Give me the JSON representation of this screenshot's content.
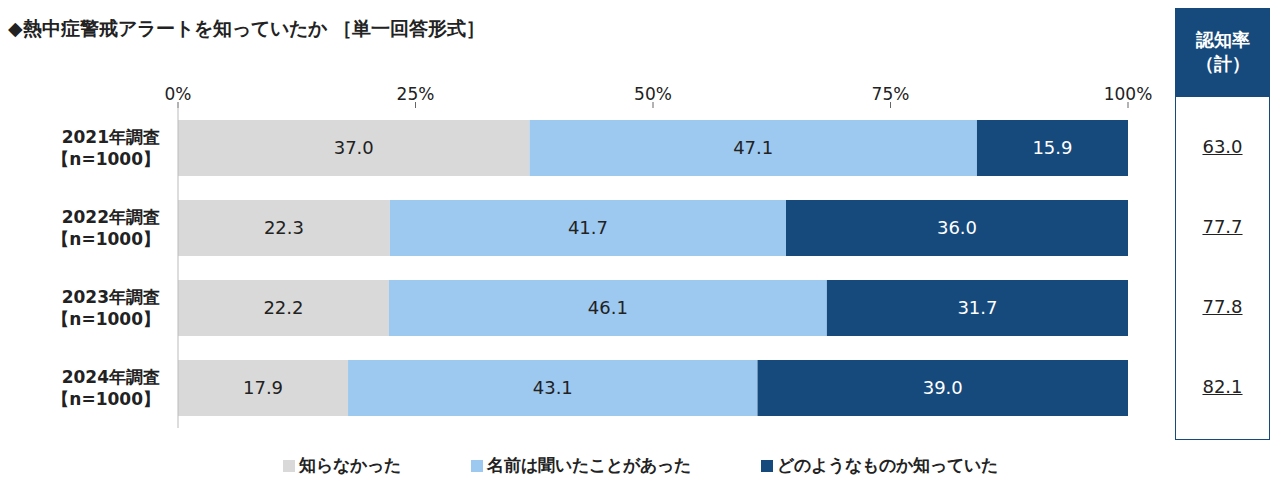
{
  "chart_data": {
    "type": "bar",
    "orientation": "horizontal",
    "stacked": true,
    "title": "◆熱中症警戒アラートを知っていたか ［単一回答形式］",
    "categories": [
      "2021年調査\n【n=1000】",
      "2022年調査\n【n=1000】",
      "2023年調査\n【n=1000】",
      "2024年調査\n【n=1000】"
    ],
    "series": [
      {
        "name": "知らなかった",
        "color": "#d9d9d9",
        "values": [
          37.0,
          22.3,
          22.2,
          17.9
        ],
        "value_labels": [
          "37.0",
          "22.3",
          "22.2",
          "17.9"
        ]
      },
      {
        "name": "名前は聞いたことがあった",
        "color": "#9dc8f0",
        "values": [
          47.1,
          41.7,
          46.1,
          43.1
        ],
        "value_labels": [
          "47.1",
          "41.7",
          "46.1",
          "43.1"
        ]
      },
      {
        "name": "どのようなものか知っていた",
        "color": "#174a7c",
        "values": [
          15.9,
          36.0,
          31.7,
          39.0
        ],
        "value_labels": [
          "15.9",
          "36.0",
          "31.7",
          "39.0"
        ]
      }
    ],
    "xlim": [
      0,
      100
    ],
    "xticks": [
      {
        "value": 0,
        "label": "0%"
      },
      {
        "value": 25,
        "label": "25%"
      },
      {
        "value": 50,
        "label": "50%"
      },
      {
        "value": 75,
        "label": "75%"
      },
      {
        "value": 100,
        "label": "100%"
      }
    ],
    "grid": false,
    "data_labels": true,
    "legend": "bottom",
    "total_header": "認知率\n（計）",
    "totals": [
      63.0,
      77.7,
      77.8,
      82.1
    ],
    "total_labels": [
      "63.0",
      "77.7",
      "77.8",
      "82.1"
    ]
  }
}
